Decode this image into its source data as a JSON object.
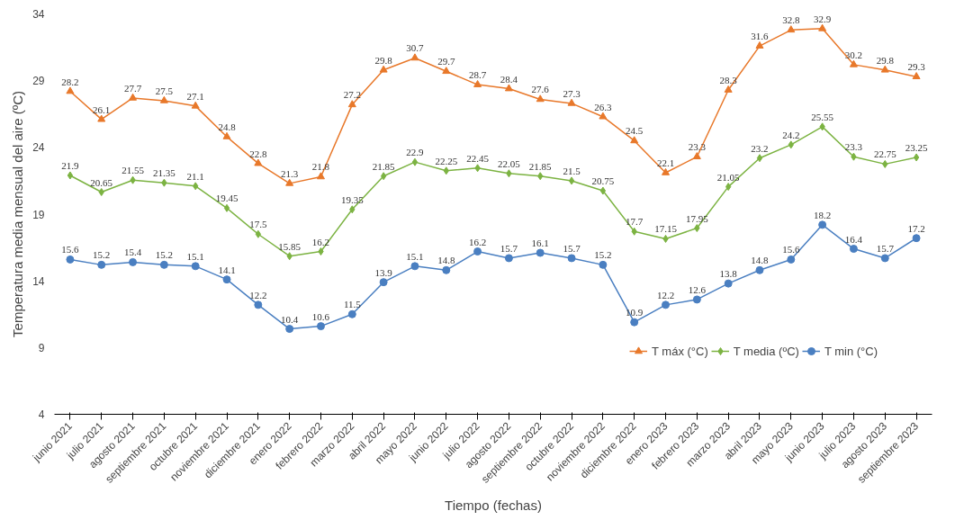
{
  "chart_data": {
    "type": "line",
    "xlabel": "Tiempo (fechas)",
    "ylabel": "Temperatura media mensual del aire (ºC)",
    "categories": [
      "junio 2021",
      "julio 2021",
      "agosto 2021",
      "septiembre 2021",
      "octubre 2021",
      "noviembre 2021",
      "diciembre 2021",
      "enero 2022",
      "febrero 2022",
      "marzo 2022",
      "abril 2022",
      "mayo 2022",
      "junio 2022",
      "julio 2022",
      "agosto 2022",
      "septiembre 2022",
      "octubre 2022",
      "noviembre 2022",
      "diciembre 2022",
      "enero 2023",
      "febrero 2023",
      "marzo 2023",
      "abril 2023",
      "mayo 2023",
      "junio 2023",
      "julio 2023",
      "agosto 2023",
      "septiembre 2023"
    ],
    "series": [
      {
        "name": "T máx (°C)",
        "color": "#e8782a",
        "marker": "triangle",
        "values": [
          28.2,
          26.1,
          27.7,
          27.5,
          27.1,
          24.8,
          22.8,
          21.3,
          21.8,
          27.2,
          29.8,
          30.7,
          29.7,
          28.7,
          28.4,
          27.6,
          27.3,
          26.3,
          24.5,
          22.1,
          23.3,
          28.3,
          31.6,
          32.8,
          32.9,
          30.2,
          29.8,
          29.3
        ]
      },
      {
        "name": "T media (ºC)",
        "color": "#7cb342",
        "marker": "diamond",
        "values": [
          21.9,
          20.65,
          21.55,
          21.35,
          21.1,
          19.45,
          17.5,
          15.85,
          16.2,
          19.35,
          21.85,
          22.9,
          22.25,
          22.45,
          22.05,
          21.85,
          21.5,
          20.75,
          17.7,
          17.15,
          17.95,
          21.05,
          23.2,
          24.2,
          25.55,
          23.3,
          22.75,
          23.25
        ]
      },
      {
        "name": "T min (°C)",
        "color": "#4a7fc1",
        "marker": "circle",
        "values": [
          15.6,
          15.2,
          15.4,
          15.2,
          15.1,
          14.1,
          12.2,
          10.4,
          10.6,
          11.5,
          13.9,
          15.1,
          14.8,
          16.2,
          15.7,
          16.1,
          15.7,
          15.2,
          10.9,
          12.2,
          12.6,
          13.8,
          14.8,
          15.6,
          18.2,
          16.4,
          15.7,
          17.2
        ]
      }
    ],
    "ylim": [
      4,
      34
    ],
    "yticks": [
      4,
      9,
      14,
      19,
      24,
      29,
      34
    ],
    "grid": false,
    "legend": "bottom right",
    "data_labels": true,
    "line_style": "solid"
  }
}
